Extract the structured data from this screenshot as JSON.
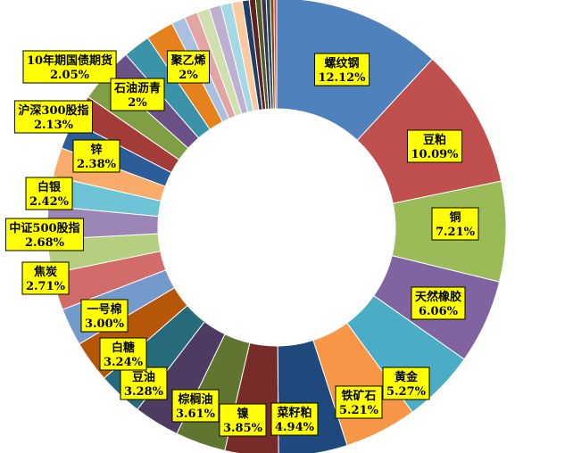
{
  "chart_data": {
    "type": "pie",
    "variant": "donut",
    "title": "",
    "slices": [
      {
        "name": "螺纹钢",
        "value": 12.12,
        "label": "12.12%",
        "color": "#4f81bd"
      },
      {
        "name": "豆粕",
        "value": 10.09,
        "label": "10.09%",
        "color": "#c0504d"
      },
      {
        "name": "铜",
        "value": 7.21,
        "label": "7.21%",
        "color": "#9bbb59"
      },
      {
        "name": "天然橡胶",
        "value": 6.06,
        "label": "6.06%",
        "color": "#8064a2"
      },
      {
        "name": "黄金",
        "value": 5.27,
        "label": "5.27%",
        "color": "#4bacc6"
      },
      {
        "name": "铁矿石",
        "value": 5.21,
        "label": "5.21%",
        "color": "#f79646"
      },
      {
        "name": "菜籽粕",
        "value": 4.94,
        "label": "4.94%",
        "color": "#1f497d"
      },
      {
        "name": "镍",
        "value": 3.85,
        "label": "3.85%",
        "color": "#772c2a"
      },
      {
        "name": "棕榈油",
        "value": 3.61,
        "label": "3.61%",
        "color": "#5f7530"
      },
      {
        "name": "豆油",
        "value": 3.28,
        "label": "3.28%",
        "color": "#4d3b62"
      },
      {
        "name": "白糖",
        "value": 3.24,
        "label": "3.24%",
        "color": "#276a7c"
      },
      {
        "name": "一号棉",
        "value": 3.0,
        "label": "3.00%",
        "color": "#b65708"
      },
      {
        "name": "焦炭",
        "value": 2.71,
        "label": "2.71%",
        "color": "#729aca"
      },
      {
        "name": "中证500股指",
        "value": 2.68,
        "label": "2.68%",
        "color": "#d16c6a"
      },
      {
        "name": "白银",
        "value": 2.42,
        "label": "2.42%",
        "color": "#b6ce80"
      },
      {
        "name": "锌",
        "value": 2.38,
        "label": "2.38%",
        "color": "#9c86b8"
      },
      {
        "name": "沪深300股指",
        "value": 2.13,
        "label": "2.13%",
        "color": "#6fc3d6"
      },
      {
        "name": "",
        "value": 2.1,
        "label": "",
        "color": "#f9ab6b"
      },
      {
        "name": "10年期国债期货",
        "value": 2.05,
        "label": "2.05%",
        "color": "#2c5d98"
      },
      {
        "name": "",
        "value": 2.05,
        "label": "",
        "color": "#a33b38"
      },
      {
        "name": "",
        "value": 2.02,
        "label": "",
        "color": "#809f45"
      },
      {
        "name": "石油沥青",
        "value": 2.0,
        "label": "2%",
        "color": "#6a5187"
      },
      {
        "name": "",
        "value": 1.95,
        "label": "",
        "color": "#3a93a8"
      },
      {
        "name": "聚乙烯",
        "value": 2.0,
        "label": "2%",
        "color": "#e6821d"
      },
      {
        "name": "",
        "value": 1.0,
        "label": "",
        "color": "#a9c0e0"
      },
      {
        "name": "",
        "value": 0.95,
        "label": "",
        "color": "#e3a5a4"
      },
      {
        "name": "",
        "value": 0.9,
        "label": "",
        "color": "#cfdfb0"
      },
      {
        "name": "",
        "value": 0.85,
        "label": "",
        "color": "#bdb0d0"
      },
      {
        "name": "",
        "value": 0.8,
        "label": "",
        "color": "#a5d8e5"
      },
      {
        "name": "",
        "value": 0.75,
        "label": "",
        "color": "#fbc99f"
      },
      {
        "name": "",
        "value": 0.5,
        "label": "",
        "color": "#1f3e66"
      },
      {
        "name": "",
        "value": 0.45,
        "label": "",
        "color": "#5e2221"
      },
      {
        "name": "",
        "value": 0.4,
        "label": "",
        "color": "#4b5e26"
      },
      {
        "name": "",
        "value": 0.35,
        "label": "",
        "color": "#3e2f4f"
      },
      {
        "name": "",
        "value": 0.3,
        "label": "",
        "color": "#1d4f5c"
      },
      {
        "name": "",
        "value": 0.25,
        "label": "",
        "color": "#8a4206"
      },
      {
        "name": "",
        "value": 0.2,
        "label": "",
        "color": "#c0504d"
      }
    ],
    "legend": "none",
    "label_style": "yellow boxes"
  }
}
